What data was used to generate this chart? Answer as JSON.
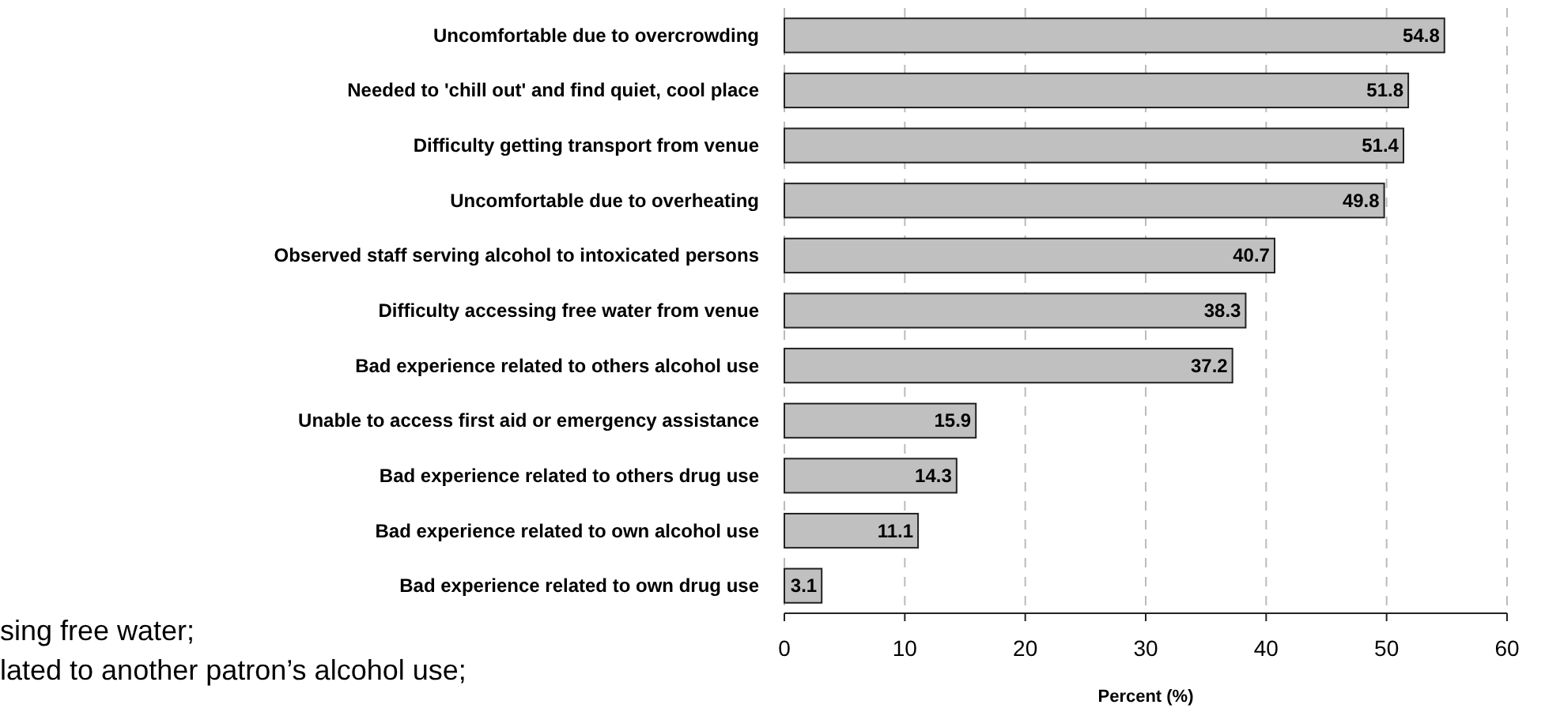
{
  "chart_data": {
    "type": "bar",
    "orientation": "horizontal",
    "categories": [
      "Uncomfortable due to overcrowding",
      "Needed to 'chill out' and find quiet, cool place",
      "Difficulty getting transport from venue",
      "Uncomfortable due to overheating",
      "Observed staff serving alcohol to intoxicated persons",
      "Difficulty accessing free water from venue",
      "Bad experience related to others alcohol use",
      "Unable to access first aid or emergency assistance",
      "Bad experience related to others drug use",
      "Bad experience related to own alcohol use",
      "Bad experience related to own drug use"
    ],
    "values": [
      54.8,
      51.8,
      51.4,
      49.8,
      40.7,
      38.3,
      37.2,
      15.9,
      14.3,
      11.1,
      3.1
    ],
    "color": "#c0c0c0",
    "xlim": [
      0,
      60
    ],
    "xticks": [
      0,
      10,
      20,
      30,
      40,
      50,
      60
    ],
    "xlabel": "Percent (%)",
    "grid": "x",
    "data_labels": true,
    "annotations": [
      "sing free water;",
      "lated to another patron’s alcohol use;"
    ]
  }
}
